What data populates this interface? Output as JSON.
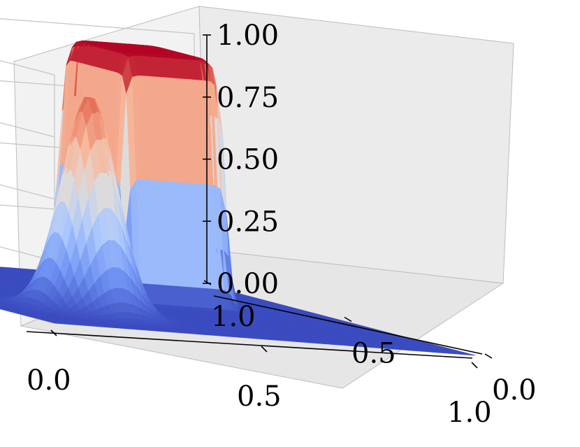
{
  "chart_data": {
    "type": "surface3d",
    "colormap": "coolwarm",
    "colormap_stops": [
      "#3b4cc0",
      "#6f92f3",
      "#aac7fd",
      "#dddcdc",
      "#f7b89c",
      "#e7745b",
      "#b40426"
    ],
    "xlim": [
      0.0,
      1.0
    ],
    "ylim": [
      0.0,
      1.0
    ],
    "zlim": [
      0.0,
      1.0
    ],
    "x_ticks": [
      "0.0",
      "0.5",
      "1.0"
    ],
    "y_ticks": [
      "0.0",
      "0.5",
      "1.0"
    ],
    "z_ticks": [
      "0.00",
      "0.25",
      "0.50",
      "0.75",
      "1.00"
    ],
    "grid": true,
    "surfaces": [
      {
        "shape": "gaussian-peak",
        "center": [
          0.25,
          0.25
        ],
        "peak": 0.88,
        "base": 0.0
      },
      {
        "shape": "square-plateau",
        "x_range": [
          0.5,
          0.75
        ],
        "y_range": [
          0.5,
          0.75
        ],
        "height": 1.0,
        "base": 0.0
      }
    ]
  }
}
